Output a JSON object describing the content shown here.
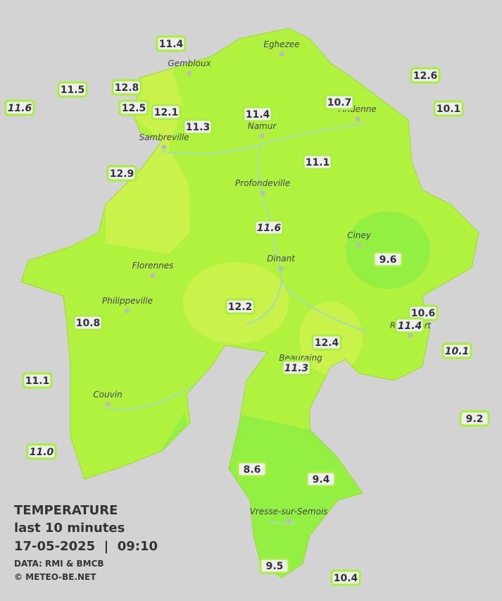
{
  "legend": {
    "title": "TEMPERATURE",
    "subtitle": "last 10 minutes",
    "datetime": "17-05-2025  |  09:10",
    "source": "DATA: RMI & BMCB",
    "copyright": "© METEO-BE.NET"
  },
  "towns": [
    "Eghezee",
    "Gembloux",
    "Andenne",
    "Namur",
    "Sambreville",
    "Profondeville",
    "Ciney",
    "Dinant",
    "Florennes",
    "Philippeville",
    "Rochefort",
    "Beauraing",
    "Couvin",
    "Vresse-sur-Semois"
  ],
  "stations": [
    {
      "label": "11.4",
      "italic": false
    },
    {
      "label": "11.5",
      "italic": false
    },
    {
      "label": "11.6",
      "italic": true
    },
    {
      "label": "12.8",
      "italic": false
    },
    {
      "label": "12.5",
      "italic": false
    },
    {
      "label": "12.1",
      "italic": false
    },
    {
      "label": "11.3",
      "italic": false
    },
    {
      "label": "11.4",
      "italic": false
    },
    {
      "label": "10.7",
      "italic": false
    },
    {
      "label": "12.6",
      "italic": false
    },
    {
      "label": "10.1",
      "italic": false
    },
    {
      "label": "11.1",
      "italic": false
    },
    {
      "label": "12.9",
      "italic": false
    },
    {
      "label": "11.6",
      "italic": true
    },
    {
      "label": "9.6",
      "italic": false
    },
    {
      "label": "12.2",
      "italic": false
    },
    {
      "label": "10.8",
      "italic": false
    },
    {
      "label": "10.6",
      "italic": false
    },
    {
      "label": "11.4",
      "italic": true
    },
    {
      "label": "12.4",
      "italic": false
    },
    {
      "label": "10.1",
      "italic": true
    },
    {
      "label": "11.3",
      "italic": true
    },
    {
      "label": "11.1",
      "italic": false
    },
    {
      "label": "9.2",
      "italic": false
    },
    {
      "label": "11.0",
      "italic": true
    },
    {
      "label": "8.6",
      "italic": false
    },
    {
      "label": "9.4",
      "italic": false
    },
    {
      "label": "9.5",
      "italic": false
    },
    {
      "label": "10.4",
      "italic": false
    }
  ]
}
